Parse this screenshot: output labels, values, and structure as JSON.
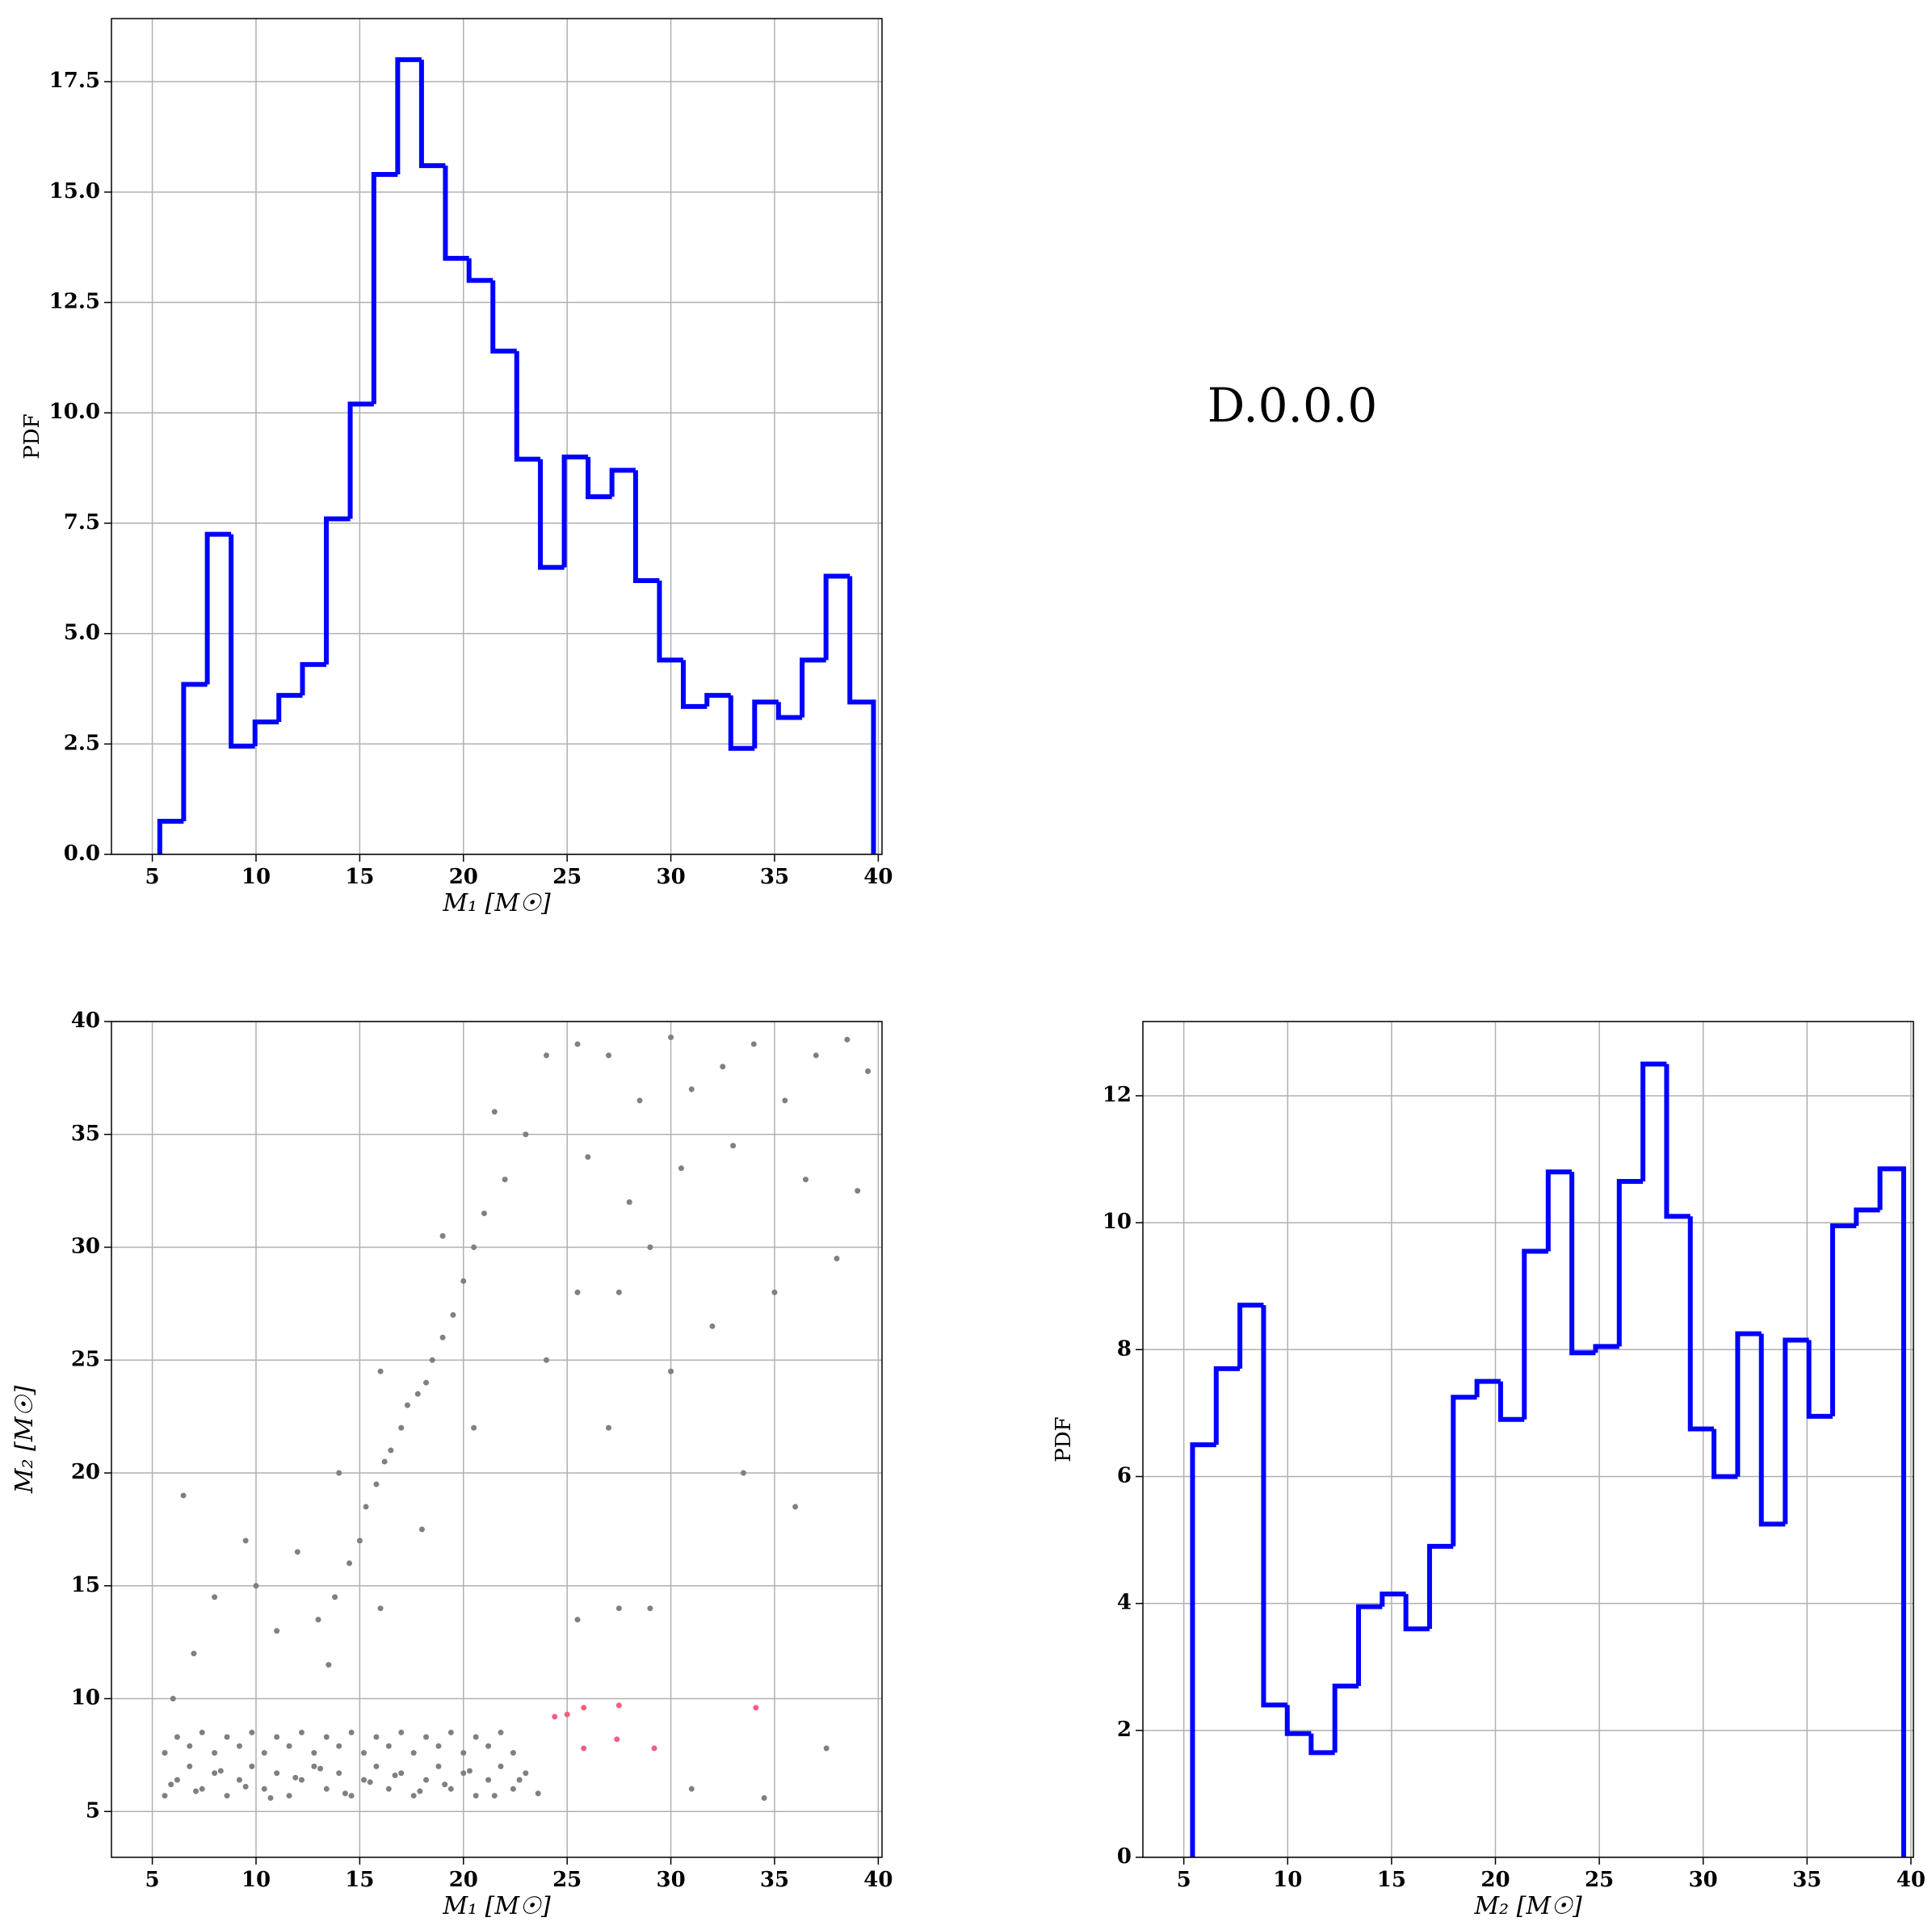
{
  "label": "D.0.0.0",
  "chart_data": [
    {
      "type": "histogram",
      "xlabel": "M₁ [M☉]",
      "ylabel": "PDF",
      "color": "#0000ff",
      "grid": true,
      "xlim": [
        3.03,
        40.18
      ],
      "ylim": [
        0,
        18.93
      ],
      "xticks": [
        5,
        10,
        15,
        20,
        25,
        30,
        35,
        40
      ],
      "yticks": [
        {
          "value": 0,
          "label": "0.0"
        },
        2.5,
        {
          "value": 5,
          "label": "5.0"
        },
        7.5,
        {
          "value": 10,
          "label": "10.0"
        },
        12.5,
        {
          "value": 15,
          "label": "15.0"
        },
        17.5
      ],
      "bins": [
        5.36,
        6.51,
        7.65,
        8.8,
        9.95,
        11.1,
        12.24,
        13.39,
        14.54,
        15.68,
        16.83,
        17.98,
        19.13,
        20.27,
        21.42,
        22.57,
        23.71,
        24.86,
        26.01,
        27.16,
        28.3,
        29.45,
        30.6,
        31.74,
        32.89,
        34.04,
        35.19,
        36.33,
        37.48,
        38.63,
        39.77
      ],
      "values": [
        0.75,
        3.85,
        7.25,
        2.45,
        3.0,
        3.6,
        4.3,
        7.6,
        10.2,
        15.4,
        18.0,
        15.6,
        13.5,
        13.0,
        11.4,
        8.95,
        6.5,
        9.0,
        8.1,
        8.7,
        6.2,
        4.4,
        3.35,
        3.6,
        2.4,
        3.45,
        3.1,
        4.4,
        6.3,
        3.45
      ]
    },
    {
      "type": "scatter",
      "xlabel": "M₁ [M☉]",
      "ylabel": "M₂ [M☉]",
      "grid": true,
      "xlim": [
        3.03,
        40.18
      ],
      "ylim": [
        2.97,
        40
      ],
      "xticks": [
        5,
        10,
        15,
        20,
        25,
        30,
        35,
        40
      ],
      "yticks": [
        5,
        10,
        15,
        20,
        25,
        30,
        35,
        40
      ],
      "series": [
        {
          "color": "#808080",
          "x": [
            5.6,
            6.2,
            6.8,
            7.4,
            8.0,
            8.6,
            9.2,
            9.8,
            10.4,
            11.0,
            11.6,
            12.2,
            12.8,
            13.4,
            14.0,
            14.6,
            15.2,
            15.8,
            16.4,
            17.0,
            17.6,
            18.2,
            18.8,
            19.4,
            20.0,
            20.6,
            21.2,
            21.8,
            22.4,
            23.0,
            23.6,
            5.9,
            7.1,
            8.3,
            9.5,
            10.7,
            11.9,
            13.1,
            14.3,
            15.5,
            16.7,
            17.9,
            19.1,
            20.3,
            21.5,
            22.7,
            5.6,
            6.2,
            6.8,
            7.4,
            8.0,
            8.6,
            9.2,
            9.8,
            10.4,
            11.0,
            11.6,
            12.2,
            12.8,
            13.4,
            14.0,
            14.6,
            15.2,
            15.8,
            16.4,
            17.0,
            17.6,
            18.2,
            18.8,
            19.4,
            20.0,
            20.6,
            21.2,
            21.8,
            22.4,
            13.0,
            13.8,
            14.5,
            15.0,
            15.3,
            15.8,
            16.2,
            16.5,
            17.0,
            17.3,
            17.8,
            18.2,
            18.5,
            19.0,
            19.5,
            20.0,
            20.5,
            21.0,
            22.0,
            23.0,
            12.0,
            11.0,
            10.0,
            14.0,
            16.0,
            19.0,
            21.5,
            24.0,
            13.5,
            16.0,
            18.0,
            20.5,
            25.5,
            27.0,
            28.5,
            30.0,
            31.0,
            32.5,
            34.0,
            35.5,
            37.0,
            38.5,
            39.5,
            26.0,
            28.0,
            30.5,
            33.0,
            36.5,
            39.0,
            25.5,
            27.5,
            29.0,
            32.0,
            35.0,
            38.0,
            24.0,
            27.0,
            30.0,
            33.5,
            36.0,
            29.0,
            25.5,
            27.5,
            31.0,
            37.5,
            34.5,
            8.0,
            7.0,
            6.0,
            9.5,
            6.5
          ],
          "y": [
            5.7,
            6.4,
            7.0,
            6.0,
            6.7,
            5.7,
            6.4,
            7.0,
            6.0,
            6.7,
            5.7,
            6.4,
            7.0,
            6.0,
            6.7,
            5.7,
            6.4,
            7.0,
            6.0,
            6.7,
            5.7,
            6.4,
            7.0,
            6.0,
            6.7,
            5.7,
            6.4,
            7.0,
            6.0,
            6.7,
            5.8,
            6.2,
            5.9,
            6.8,
            6.1,
            5.6,
            6.5,
            6.9,
            5.8,
            6.3,
            6.6,
            5.9,
            6.2,
            6.8,
            5.7,
            6.4,
            7.6,
            8.3,
            7.9,
            8.5,
            7.6,
            8.3,
            7.9,
            8.5,
            7.6,
            8.3,
            7.9,
            8.5,
            7.6,
            8.3,
            7.9,
            8.5,
            7.6,
            8.3,
            7.9,
            8.5,
            7.6,
            8.3,
            7.9,
            8.5,
            7.6,
            8.3,
            7.9,
            8.5,
            7.6,
            13.5,
            14.5,
            16.0,
            17.0,
            18.5,
            19.5,
            20.5,
            21.0,
            22.0,
            23.0,
            23.5,
            24.0,
            25.0,
            26.0,
            27.0,
            28.5,
            30.0,
            31.5,
            33.0,
            35.0,
            16.5,
            13.0,
            15.0,
            20.0,
            24.5,
            30.5,
            36.0,
            38.5,
            11.5,
            14.0,
            17.5,
            22.0,
            39.0,
            38.5,
            36.5,
            39.3,
            37.0,
            38.0,
            39.0,
            36.5,
            38.5,
            39.2,
            37.8,
            34.0,
            32.0,
            33.5,
            34.5,
            33.0,
            32.5,
            28.0,
            28.0,
            30.0,
            26.5,
            28.0,
            29.5,
            25.0,
            22.0,
            24.5,
            20.0,
            18.5,
            14.0,
            13.5,
            14.0,
            6.0,
            7.8,
            5.6,
            14.5,
            12.0,
            10.0,
            17.0,
            19.0
          ]
        },
        {
          "color": "#f06080",
          "x": [
            24.4,
            25.0,
            25.8,
            25.8,
            27.5,
            27.4,
            29.2,
            34.1
          ],
          "y": [
            9.2,
            9.3,
            9.6,
            7.8,
            9.7,
            8.2,
            7.8,
            9.6
          ]
        }
      ]
    },
    {
      "type": "histogram",
      "xlabel": "M₂ [M☉]",
      "ylabel": "PDF",
      "color": "#0000ff",
      "grid": true,
      "xlim": [
        3.03,
        40.12
      ],
      "ylim": [
        0,
        13.17
      ],
      "xticks": [
        5,
        10,
        15,
        20,
        25,
        30,
        35,
        40
      ],
      "yticks": [
        0,
        2,
        4,
        6,
        8,
        10,
        12
      ],
      "bins": [
        5.42,
        6.56,
        7.7,
        8.84,
        9.98,
        11.13,
        12.27,
        13.41,
        14.55,
        15.69,
        16.83,
        17.97,
        19.11,
        20.25,
        21.39,
        22.54,
        23.68,
        24.82,
        25.96,
        27.1,
        28.24,
        29.38,
        30.52,
        31.66,
        32.8,
        33.95,
        35.09,
        36.23,
        37.37,
        38.51,
        39.65
      ],
      "values": [
        6.5,
        7.7,
        8.7,
        2.4,
        1.95,
        1.65,
        2.7,
        3.95,
        4.15,
        3.6,
        4.9,
        7.25,
        7.5,
        6.9,
        9.55,
        10.8,
        7.95,
        8.05,
        10.65,
        12.5,
        10.1,
        6.75,
        6.0,
        8.25,
        5.25,
        8.15,
        6.95,
        9.95,
        10.2,
        10.85
      ]
    }
  ]
}
